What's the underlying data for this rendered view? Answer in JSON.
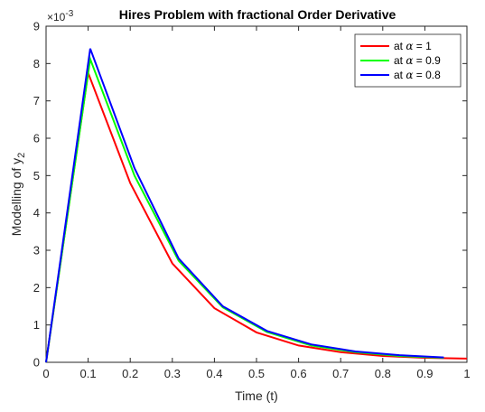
{
  "chart_data": {
    "type": "line",
    "title": "Hires Problem with fractional Order Derivative",
    "xlabel": "Time (t)",
    "ylabel_text": "Modelling of y",
    "ylabel_subscript": "2",
    "y_multiplier": "×10",
    "y_multiplier_exp": "-3",
    "xlim": [
      0,
      1
    ],
    "ylim": [
      0,
      9
    ],
    "xticks": [
      "0",
      "0.1",
      "0.2",
      "0.3",
      "0.4",
      "0.5",
      "0.6",
      "0.7",
      "0.8",
      "0.9",
      "1"
    ],
    "yticks": [
      "0",
      "1",
      "2",
      "3",
      "4",
      "5",
      "6",
      "7",
      "8",
      "9"
    ],
    "legend": {
      "position": "top-right",
      "prefix": "at",
      "symbol": "α"
    },
    "grid": false,
    "series": [
      {
        "name": "at α = 1",
        "alpha_value": "1",
        "color": "#ff0000",
        "x": [
          0,
          0.1,
          0.2,
          0.3,
          0.4,
          0.5,
          0.6,
          0.7,
          0.8,
          0.9,
          1.0
        ],
        "y": [
          0,
          7.75,
          4.8,
          2.65,
          1.45,
          0.8,
          0.45,
          0.27,
          0.17,
          0.12,
          0.1
        ]
      },
      {
        "name": "at α = 0.9",
        "alpha_value": "0.9",
        "color": "#00ff00",
        "x": [
          0,
          0.105,
          0.21,
          0.315,
          0.42,
          0.525,
          0.63,
          0.735,
          0.84,
          0.945
        ],
        "y": [
          0,
          8.12,
          5.0,
          2.72,
          1.47,
          0.81,
          0.45,
          0.27,
          0.17,
          0.12
        ]
      },
      {
        "name": "at α = 0.8",
        "alpha_value": "0.8",
        "color": "#0000ff",
        "x": [
          0,
          0.105,
          0.21,
          0.315,
          0.42,
          0.525,
          0.63,
          0.735,
          0.84,
          0.945
        ],
        "y": [
          0,
          8.4,
          5.2,
          2.78,
          1.5,
          0.84,
          0.48,
          0.29,
          0.19,
          0.13
        ]
      }
    ]
  }
}
